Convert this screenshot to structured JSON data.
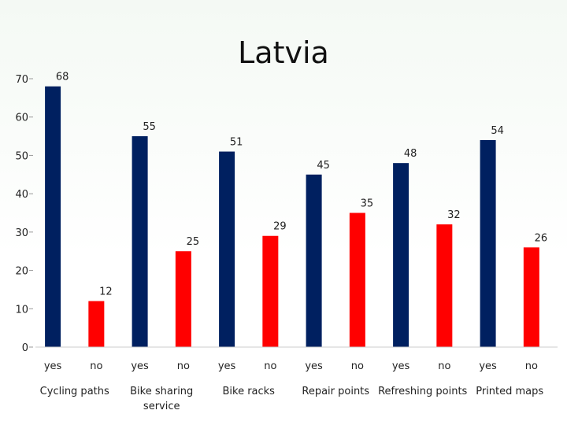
{
  "chart_data": {
    "type": "bar",
    "title": "Latvia",
    "xlabel": "",
    "ylabel": "",
    "ylim": [
      0,
      70
    ],
    "yticks": [
      "0",
      "10",
      "20",
      "30",
      "40",
      "50",
      "60",
      "70"
    ],
    "grid": false,
    "categories": [
      "Cycling paths",
      "Bike sharing service",
      "Bike racks",
      "Repair points",
      "Refreshing points",
      "Printed maps"
    ],
    "category_lines": [
      [
        "Cycling paths"
      ],
      [
        "Bike sharing",
        "service"
      ],
      [
        "Bike racks"
      ],
      [
        "Repair points"
      ],
      [
        "Refreshing points"
      ],
      [
        "Printed maps"
      ]
    ],
    "sub_labels": [
      "yes",
      "no"
    ],
    "series": [
      {
        "name": "yes",
        "color": "#002060",
        "values": [
          68,
          55,
          51,
          45,
          48,
          54
        ]
      },
      {
        "name": "no",
        "color": "#ff0000",
        "values": [
          12,
          25,
          29,
          35,
          32,
          26
        ]
      }
    ]
  }
}
